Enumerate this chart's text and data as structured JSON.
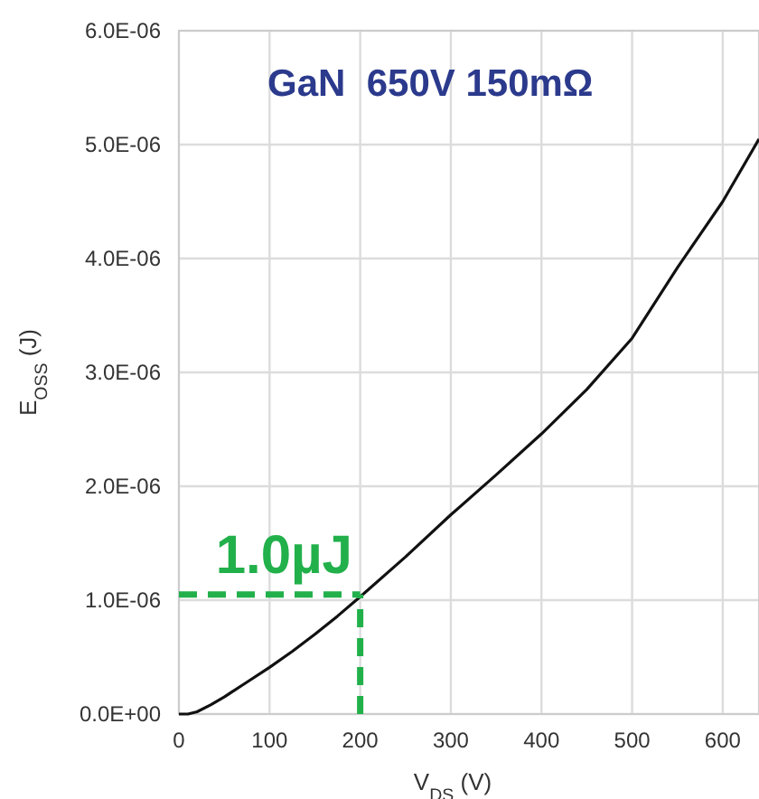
{
  "chart_data": {
    "type": "line",
    "title": "GaN  650V 150mΩ",
    "xlabel": "V$_{DS}$ (V)",
    "ylabel": "E$_{OSS}$ (J)",
    "x": [
      0,
      10,
      20,
      35,
      50,
      75,
      100,
      125,
      150,
      175,
      200,
      250,
      300,
      350,
      400,
      450,
      500,
      550,
      600,
      640
    ],
    "series": [
      {
        "color": "#111111",
        "values": [
          0,
          0,
          2e-08,
          8e-08,
          1.5e-07,
          2.8e-07,
          4.1e-07,
          5.5e-07,
          7e-07,
          8.6e-07,
          1.03e-06,
          1.38e-06,
          1.75e-06,
          2.1e-06,
          2.46e-06,
          2.85e-06,
          3.3e-06,
          3.92e-06,
          4.5e-06,
          5.05e-06
        ]
      }
    ],
    "xlim": [
      0,
      640
    ],
    "xticks": [
      0,
      100,
      200,
      300,
      400,
      500,
      600
    ],
    "ylim": [
      0,
      6e-06
    ],
    "yticks": [
      {
        "value": 0,
        "label": "0.0E+00"
      },
      {
        "value": 1e-06,
        "label": "1.0E-06"
      },
      {
        "value": 2e-06,
        "label": "2.0E-06"
      },
      {
        "value": 3e-06,
        "label": "3.0E-06"
      },
      {
        "value": 4e-06,
        "label": "4.0E-06"
      },
      {
        "value": 5e-06,
        "label": "5.0E-06"
      },
      {
        "value": 6e-06,
        "label": "6.0E-06"
      }
    ],
    "grid": true,
    "line_style": "solid",
    "marker": "none",
    "ref_lines": [
      {
        "axis": "y",
        "value": 1.05e-06,
        "color": "#22b04b",
        "line_style": "dashed"
      },
      {
        "axis": "x",
        "value": 200,
        "color": "#22b04b",
        "line_style": "dashed"
      }
    ],
    "annotations": [
      "1.0µJ"
    ]
  }
}
